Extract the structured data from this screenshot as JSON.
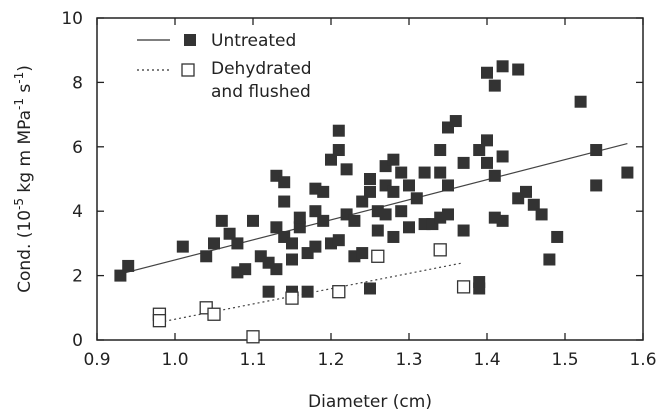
{
  "chart_data": {
    "type": "scatter",
    "xlabel": "Diameter (cm)",
    "ylabel_prefix": "Cond. (10",
    "ylabel_exp1": "-5",
    "ylabel_mid": " kg m MPa",
    "ylabel_exp2": "-1",
    "ylabel_mid2": " s",
    "ylabel_exp3": "-1",
    "ylabel_suffix": ")",
    "xlim": [
      0.9,
      1.6
    ],
    "ylim": [
      0,
      10
    ],
    "x_ticks": [
      "0.9",
      "1.0",
      "1.1",
      "1.2",
      "1.3",
      "1.4",
      "1.5",
      "1.6"
    ],
    "y_ticks": [
      "0",
      "2",
      "4",
      "6",
      "8",
      "10"
    ],
    "grid": false,
    "legend_position": "top-left",
    "legend": {
      "untreated": "Untreated",
      "dehydrated_line1": "Dehydrated",
      "dehydrated_line2": "and flushed"
    },
    "series": [
      {
        "name": "Untreated",
        "marker": "filled-square",
        "line_style": "solid",
        "fit_line": {
          "x": [
            0.93,
            1.58
          ],
          "y": [
            2.05,
            6.1
          ]
        },
        "points": [
          [
            0.93,
            2.0
          ],
          [
            0.94,
            2.3
          ],
          [
            1.01,
            2.9
          ],
          [
            1.04,
            2.6
          ],
          [
            1.05,
            3.0
          ],
          [
            1.06,
            3.7
          ],
          [
            1.07,
            3.3
          ],
          [
            1.08,
            3.0
          ],
          [
            1.08,
            2.1
          ],
          [
            1.09,
            2.2
          ],
          [
            1.1,
            3.7
          ],
          [
            1.11,
            2.6
          ],
          [
            1.12,
            1.5
          ],
          [
            1.12,
            2.4
          ],
          [
            1.13,
            2.2
          ],
          [
            1.13,
            3.5
          ],
          [
            1.13,
            5.1
          ],
          [
            1.14,
            4.9
          ],
          [
            1.14,
            4.3
          ],
          [
            1.14,
            3.2
          ],
          [
            1.15,
            3.0
          ],
          [
            1.15,
            2.5
          ],
          [
            1.15,
            1.5
          ],
          [
            1.16,
            3.5
          ],
          [
            1.16,
            3.8
          ],
          [
            1.17,
            2.7
          ],
          [
            1.17,
            1.5
          ],
          [
            1.18,
            2.9
          ],
          [
            1.18,
            4.7
          ],
          [
            1.18,
            4.0
          ],
          [
            1.19,
            4.6
          ],
          [
            1.19,
            3.7
          ],
          [
            1.2,
            3.0
          ],
          [
            1.2,
            5.6
          ],
          [
            1.21,
            6.5
          ],
          [
            1.21,
            5.9
          ],
          [
            1.21,
            3.1
          ],
          [
            1.22,
            5.3
          ],
          [
            1.22,
            3.9
          ],
          [
            1.23,
            2.6
          ],
          [
            1.23,
            3.7
          ],
          [
            1.24,
            4.3
          ],
          [
            1.24,
            2.7
          ],
          [
            1.25,
            4.6
          ],
          [
            1.25,
            1.6
          ],
          [
            1.25,
            5.0
          ],
          [
            1.26,
            3.4
          ],
          [
            1.26,
            4.0
          ],
          [
            1.27,
            5.4
          ],
          [
            1.27,
            4.8
          ],
          [
            1.27,
            3.9
          ],
          [
            1.28,
            5.6
          ],
          [
            1.28,
            3.2
          ],
          [
            1.28,
            4.6
          ],
          [
            1.29,
            5.2
          ],
          [
            1.29,
            4.0
          ],
          [
            1.3,
            4.8
          ],
          [
            1.3,
            3.5
          ],
          [
            1.31,
            4.4
          ],
          [
            1.32,
            3.6
          ],
          [
            1.32,
            5.2
          ],
          [
            1.33,
            3.6
          ],
          [
            1.34,
            5.9
          ],
          [
            1.34,
            5.2
          ],
          [
            1.34,
            3.8
          ],
          [
            1.35,
            4.8
          ],
          [
            1.35,
            3.9
          ],
          [
            1.35,
            6.6
          ],
          [
            1.36,
            6.8
          ],
          [
            1.37,
            3.4
          ],
          [
            1.37,
            5.5
          ],
          [
            1.39,
            1.8
          ],
          [
            1.39,
            1.6
          ],
          [
            1.39,
            5.9
          ],
          [
            1.4,
            8.3
          ],
          [
            1.4,
            6.2
          ],
          [
            1.4,
            5.5
          ],
          [
            1.41,
            7.9
          ],
          [
            1.41,
            5.1
          ],
          [
            1.41,
            3.8
          ],
          [
            1.42,
            8.5
          ],
          [
            1.42,
            5.7
          ],
          [
            1.42,
            3.7
          ],
          [
            1.44,
            8.4
          ],
          [
            1.44,
            4.4
          ],
          [
            1.45,
            4.6
          ],
          [
            1.46,
            4.2
          ],
          [
            1.47,
            3.9
          ],
          [
            1.48,
            2.5
          ],
          [
            1.49,
            3.2
          ],
          [
            1.52,
            7.4
          ],
          [
            1.54,
            5.9
          ],
          [
            1.54,
            4.8
          ],
          [
            1.58,
            5.2
          ]
        ]
      },
      {
        "name": "Dehydrated and flushed",
        "marker": "open-square",
        "line_style": "dotted",
        "fit_line": {
          "x": [
            0.98,
            1.37
          ],
          "y": [
            0.55,
            2.4
          ]
        },
        "points": [
          [
            0.98,
            0.8
          ],
          [
            0.98,
            0.6
          ],
          [
            1.04,
            1.0
          ],
          [
            1.05,
            0.8
          ],
          [
            1.1,
            0.1
          ],
          [
            1.15,
            1.3
          ],
          [
            1.21,
            1.5
          ],
          [
            1.26,
            2.6
          ],
          [
            1.34,
            2.8
          ],
          [
            1.37,
            1.65
          ]
        ]
      }
    ]
  }
}
